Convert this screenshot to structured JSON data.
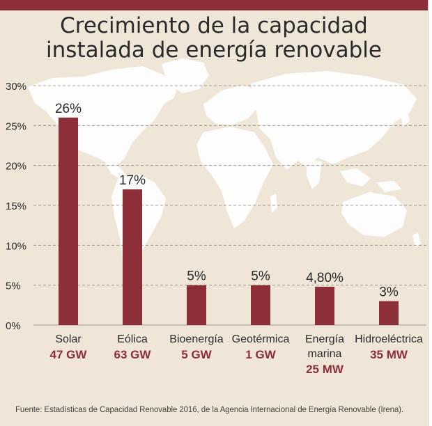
{
  "chart_data": {
    "type": "bar",
    "title": [
      "Crecimiento de la capacidad",
      "instalada de energía renovable"
    ],
    "categories": [
      [
        "Solar"
      ],
      [
        "Eólica"
      ],
      [
        "Bioenergía"
      ],
      [
        "Geotérmica"
      ],
      [
        "Energía",
        "marina"
      ],
      [
        "Hidroeléctrica"
      ]
    ],
    "capacities": [
      "47 GW",
      "63 GW",
      "5 GW",
      "1 GW",
      "25 MW",
      "35 MW"
    ],
    "values": [
      26,
      17,
      5,
      5,
      4.8,
      3
    ],
    "value_labels": [
      "26%",
      "17%",
      "5%",
      "5%",
      "4,80%",
      "3%"
    ],
    "yticks": [
      "0%",
      "5%",
      "10%",
      "15%",
      "20%",
      "25%",
      "30%"
    ],
    "ylim": [
      0,
      30
    ],
    "grid": true,
    "colors": {
      "bar": "#8c2f39",
      "capacity_text": "#8c2f39",
      "background": "#efe6d8",
      "map": "#ffffff"
    }
  },
  "source": "Fuente:  Estadísticas de Capacidad Renovable 2016, de la Agencia Internacional de Energía Renovable (Irena)."
}
